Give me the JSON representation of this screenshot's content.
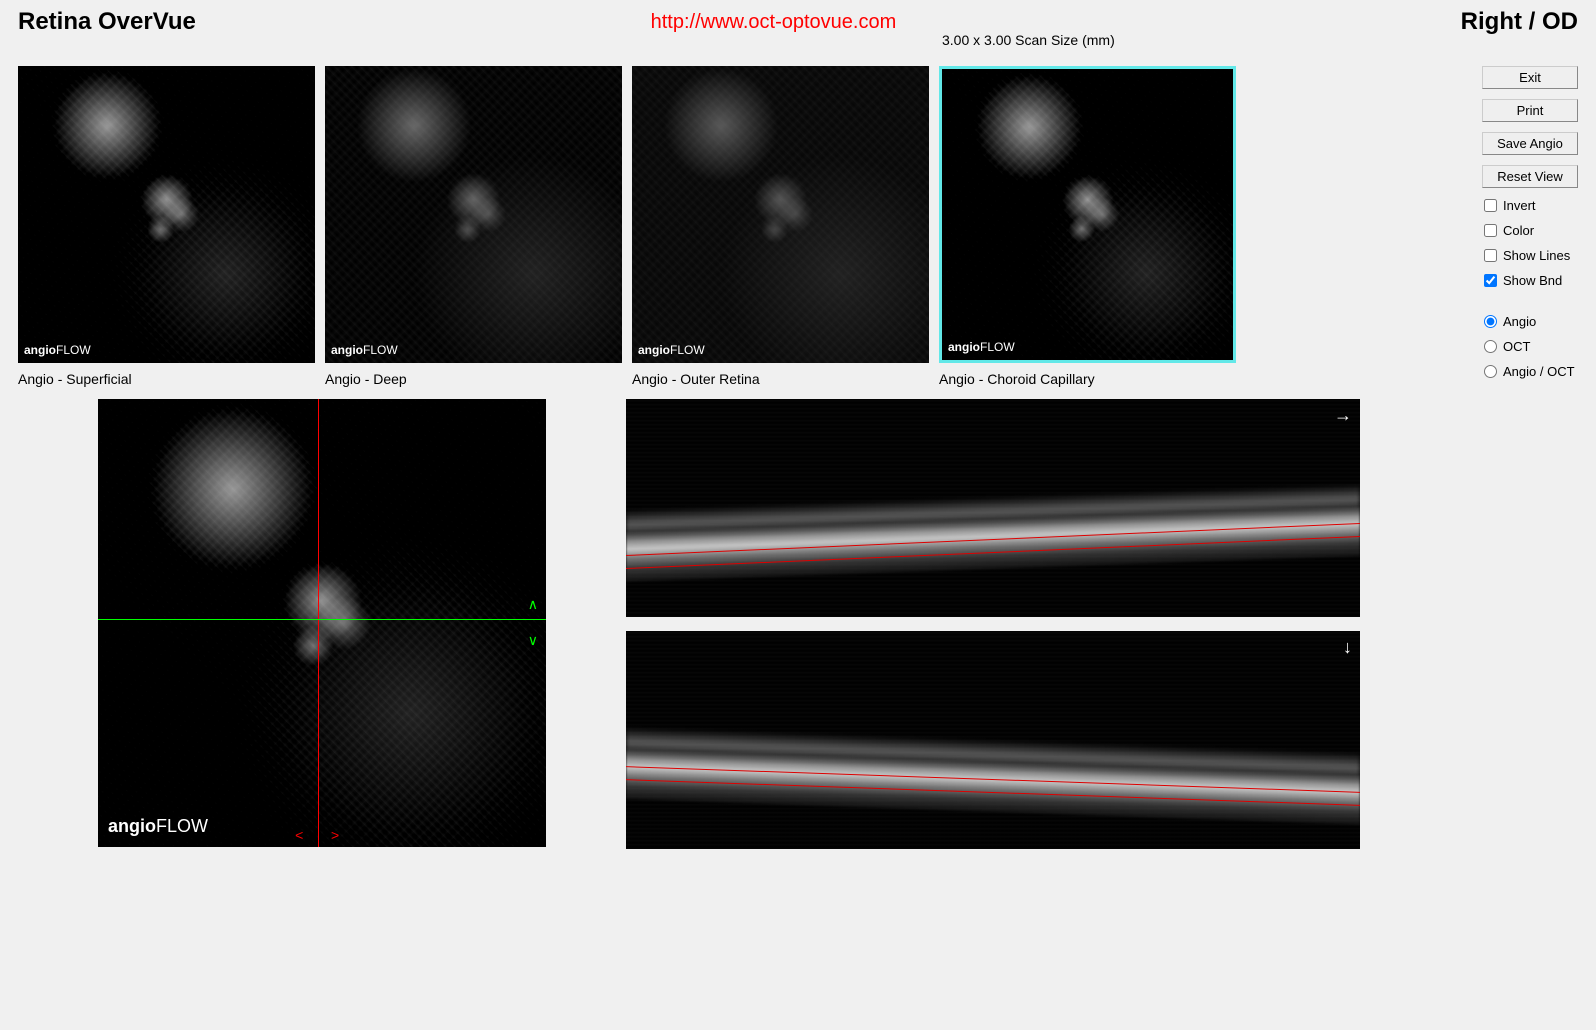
{
  "header": {
    "title_left": "Retina OverVue",
    "url_center": "http://www.oct-optovue.com",
    "title_right": "Right / OD",
    "scan_size_label": "3.00 x 3.00 Scan Size (mm)"
  },
  "thumbnails": [
    {
      "label": "Angio - Superficial",
      "watermark_prefix": "angio",
      "watermark_suffix": "FLOW",
      "variant": "superficial",
      "selected": false
    },
    {
      "label": "Angio - Deep",
      "watermark_prefix": "angio",
      "watermark_suffix": "FLOW",
      "variant": "deep",
      "selected": false
    },
    {
      "label": "Angio - Outer Retina",
      "watermark_prefix": "angio",
      "watermark_suffix": "FLOW",
      "variant": "outer",
      "selected": false
    },
    {
      "label": "Angio - Choroid Capillary",
      "watermark_prefix": "angio",
      "watermark_suffix": "FLOW",
      "variant": "choroid",
      "selected": true
    }
  ],
  "large_scan": {
    "watermark_prefix": "angio",
    "watermark_suffix": "FLOW",
    "crosshair": {
      "v_color": "#ff0000",
      "h_color": "#00ff00",
      "v_pos_pct": 49,
      "h_pos_pct": 49
    }
  },
  "bscans": [
    {
      "direction_arrow": "→",
      "boundary_lines_color": "#dd0000"
    },
    {
      "direction_arrow": "↓",
      "boundary_lines_color": "#dd0000"
    }
  ],
  "sidebar": {
    "buttons": {
      "exit": "Exit",
      "print": "Print",
      "save_angio": "Save Angio",
      "reset_view": "Reset View"
    },
    "checks": {
      "invert": {
        "label": "Invert",
        "checked": false
      },
      "color": {
        "label": "Color",
        "checked": false
      },
      "show_lines": {
        "label": "Show Lines",
        "checked": false
      },
      "show_bnd": {
        "label": "Show Bnd",
        "checked": true
      }
    },
    "radios": {
      "angio": {
        "label": "Angio",
        "checked": true
      },
      "oct": {
        "label": "OCT",
        "checked": false
      },
      "angio_oct": {
        "label": "Angio / OCT",
        "checked": false
      }
    }
  },
  "colors": {
    "background": "#f0f0f0",
    "selected_border": "#62e8e8",
    "url_text": "#ff0000",
    "crosshair_v": "#ff0000",
    "crosshair_h": "#00ff00"
  }
}
